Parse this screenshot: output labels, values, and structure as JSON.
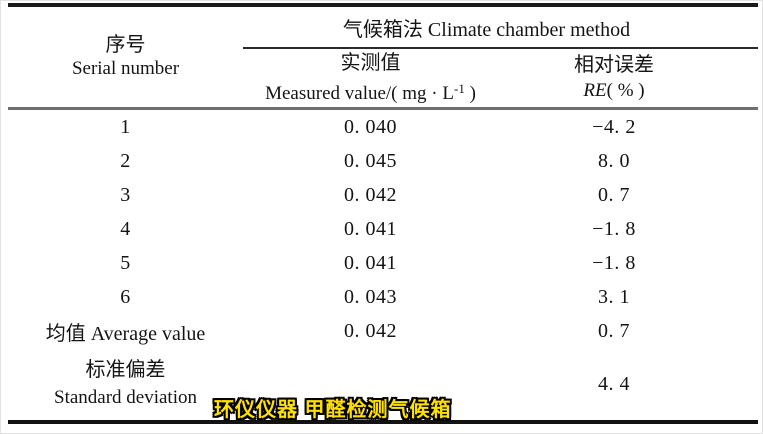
{
  "table": {
    "header": {
      "serial_zh": "序号",
      "serial_en": "Serial number",
      "method_group": "气候箱法 Climate chamber method",
      "measured_zh": "实测值",
      "measured_en_prefix": "Measured value/( mg · L",
      "measured_en_sup": "-1",
      "measured_en_suffix": " )",
      "re_zh": "相对误差",
      "re_en_italic": "RE",
      "re_en_rest": "( % )"
    },
    "rows": [
      {
        "serial": "1",
        "measured": "0. 040",
        "re": "−4. 2"
      },
      {
        "serial": "2",
        "measured": "0. 045",
        "re": "8. 0"
      },
      {
        "serial": "3",
        "measured": "0. 042",
        "re": "0. 7"
      },
      {
        "serial": "4",
        "measured": "0. 041",
        "re": "−1. 8"
      },
      {
        "serial": "5",
        "measured": "0. 041",
        "re": "−1. 8"
      },
      {
        "serial": "6",
        "measured": "0. 043",
        "re": "3. 1"
      },
      {
        "serial": "均值 Average value",
        "measured": "0. 042",
        "re": "0. 7"
      }
    ],
    "std_row": {
      "serial_zh": "标准偏差",
      "serial_en": "Standard deviation",
      "measured": "",
      "re": "4. 4"
    }
  },
  "watermark": {
    "text": "环仪仪器 甲醛检测气候箱",
    "color": "#ffe100"
  },
  "colors": {
    "rule_heavy": "#1a1a1a",
    "rule_header": "#6f6f6f",
    "rule_span": "#2b2b2b",
    "text": "#141414",
    "background": "#ffffff"
  }
}
